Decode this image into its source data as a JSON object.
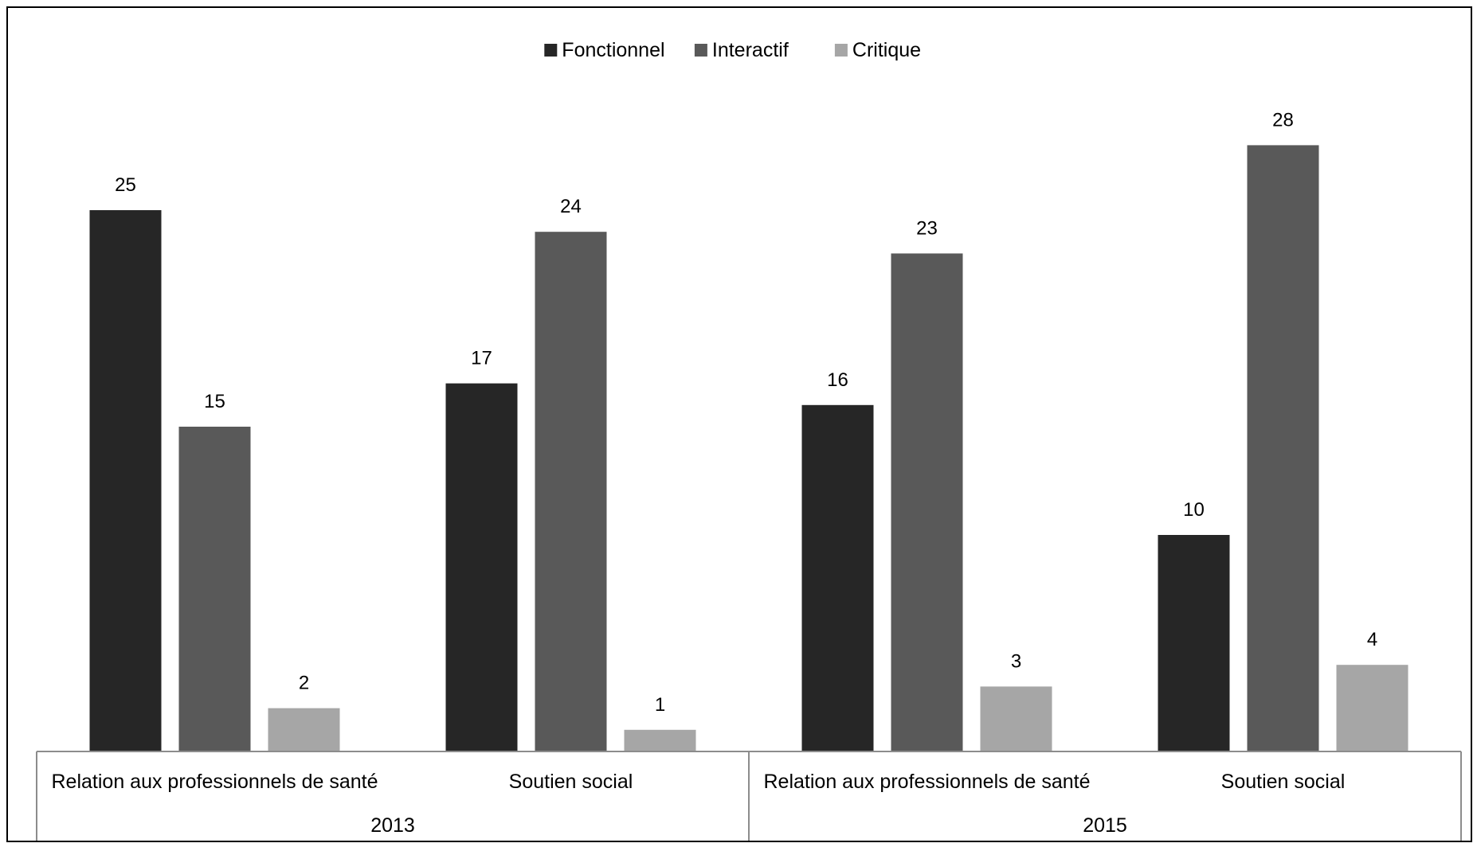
{
  "chart_data": {
    "type": "bar",
    "groups": [
      {
        "label": "2013",
        "categories": [
          "Relation aux professionnels de santé",
          "Soutien social"
        ]
      },
      {
        "label": "2015",
        "categories": [
          "Relation aux professionnels de santé",
          "Soutien social"
        ]
      }
    ],
    "categories": [
      "Relation aux professionnels de santé",
      "Soutien social",
      "Relation aux professionnels de santé",
      "Soutien social"
    ],
    "series": [
      {
        "name": "Fonctionnel",
        "color": "#262626",
        "values": [
          25,
          17,
          16,
          10
        ]
      },
      {
        "name": "Interactif",
        "color": "#595959",
        "values": [
          15,
          24,
          23,
          28
        ]
      },
      {
        "name": "Critique",
        "color": "#a6a6a6",
        "values": [
          2,
          1,
          3,
          4
        ]
      }
    ],
    "ylim": [
      0,
      30
    ],
    "grid": false,
    "legend_position": "top-center",
    "data_labels": true
  }
}
